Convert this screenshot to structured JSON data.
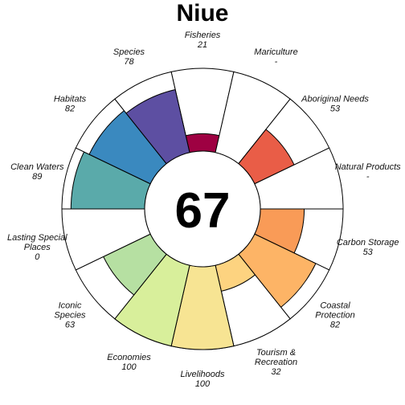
{
  "chart_data": {
    "type": "flower",
    "title": "Niue",
    "overall_score": "67",
    "max_score": 100,
    "categories": [
      {
        "name": "Fisheries",
        "label_lines": [
          "Fisheries"
        ],
        "value": 21,
        "value_text": "21",
        "color": "#9e0142"
      },
      {
        "name": "Mariculture",
        "label_lines": [
          "Mariculture"
        ],
        "value": null,
        "value_text": "-",
        "color": "#d53e4f"
      },
      {
        "name": "Aboriginal Needs",
        "label_lines": [
          "Aboriginal Needs"
        ],
        "value": 53,
        "value_text": "53",
        "color": "#e95d47"
      },
      {
        "name": "Natural Products",
        "label_lines": [
          "Natural Products"
        ],
        "value": null,
        "value_text": "-",
        "color": "#f17c4a"
      },
      {
        "name": "Carbon Storage",
        "label_lines": [
          "Carbon Storage"
        ],
        "value": 53,
        "value_text": "53",
        "color": "#f99b57"
      },
      {
        "name": "Coastal Protection",
        "label_lines": [
          "Coastal",
          "Protection"
        ],
        "value": 82,
        "value_text": "82",
        "color": "#fdb466"
      },
      {
        "name": "Tourism & Recreation",
        "label_lines": [
          "Tourism &",
          "Recreation"
        ],
        "value": 32,
        "value_text": "32",
        "color": "#fdd380"
      },
      {
        "name": "Livelihoods",
        "label_lines": [
          "Livelihoods"
        ],
        "value": 100,
        "value_text": "100",
        "color": "#f7e493"
      },
      {
        "name": "Economies",
        "label_lines": [
          "Economies"
        ],
        "value": 100,
        "value_text": "100",
        "color": "#d8ef9b"
      },
      {
        "name": "Iconic Species",
        "label_lines": [
          "Iconic",
          "Species"
        ],
        "value": 63,
        "value_text": "63",
        "color": "#b6e0a2"
      },
      {
        "name": "Lasting Special Places",
        "label_lines": [
          "Lasting Special",
          "Places"
        ],
        "value": 0,
        "value_text": "0",
        "color": "#8dcfa4"
      },
      {
        "name": "Clean Waters",
        "label_lines": [
          "Clean Waters"
        ],
        "value": 89,
        "value_text": "89",
        "color": "#5aaaaa"
      },
      {
        "name": "Habitats",
        "label_lines": [
          "Habitats"
        ],
        "value": 82,
        "value_text": "82",
        "color": "#3a89bf"
      },
      {
        "name": "Species",
        "label_lines": [
          "Species"
        ],
        "value": 78,
        "value_text": "78",
        "color": "#5d4fa2"
      }
    ]
  }
}
